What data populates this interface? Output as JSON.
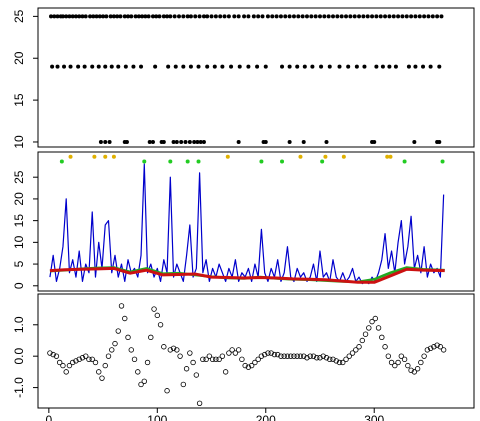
{
  "chart_data": [
    {
      "type": "scatter",
      "xlim": [
        -10,
        392
      ],
      "ylim": [
        9.4,
        26
      ],
      "yticks": [
        10,
        15,
        20,
        25
      ],
      "series": [
        {
          "color": "#000000",
          "x": [
            2,
            5,
            8,
            11,
            13,
            16,
            19,
            22,
            25,
            28,
            31,
            34,
            38,
            41,
            44,
            47,
            50,
            53,
            57,
            60,
            63,
            66,
            70,
            73,
            76,
            80,
            83,
            86,
            89,
            92,
            96,
            99,
            102,
            106,
            109,
            112,
            116,
            120,
            124,
            128,
            131,
            135,
            139,
            143,
            146,
            150,
            154,
            158,
            162,
            166,
            171,
            175,
            180,
            184,
            189,
            193,
            197,
            202,
            206,
            210,
            214,
            218,
            222,
            226,
            230,
            234,
            238,
            242,
            246,
            250,
            254,
            258,
            262,
            266,
            270,
            274,
            278,
            282,
            286,
            290,
            294,
            298,
            302,
            306,
            310,
            314,
            318,
            322,
            326,
            330,
            334,
            338,
            342,
            346,
            350,
            354,
            358,
            362
          ],
          "values": [
            25,
            25,
            25,
            25,
            25,
            25,
            25,
            25,
            25,
            25,
            25,
            25,
            25,
            25,
            25,
            25,
            25,
            25,
            25,
            25,
            25,
            25,
            25,
            25,
            25,
            25,
            25,
            25,
            25,
            25,
            25,
            25,
            25,
            25,
            25,
            25,
            25,
            25,
            25,
            25,
            25,
            25,
            25,
            25,
            25,
            25,
            25,
            25,
            25,
            25,
            25,
            25,
            25,
            25,
            25,
            25,
            25,
            25,
            25,
            25,
            25,
            25,
            25,
            25,
            25,
            25,
            25,
            25,
            25,
            25,
            25,
            25,
            25,
            25,
            25,
            25,
            25,
            25,
            25,
            25,
            25,
            25,
            25,
            25,
            25,
            25,
            25,
            25,
            25,
            25,
            25,
            25,
            25,
            25,
            25,
            25,
            25,
            25
          ]
        },
        {
          "color": "#000000",
          "x": [
            3,
            8,
            14,
            20,
            27,
            33,
            40,
            46,
            52,
            58,
            64,
            71,
            78,
            85,
            98,
            110,
            117,
            124,
            131,
            138,
            146,
            153,
            160,
            168,
            176,
            184,
            192,
            200,
            215,
            222,
            229,
            236,
            243,
            251,
            259,
            268,
            276,
            284,
            291,
            302,
            308,
            314,
            320,
            332,
            338,
            345,
            352,
            360
          ],
          "values": [
            19,
            19,
            19,
            19,
            19,
            19,
            19,
            19,
            19,
            19,
            19,
            19,
            19,
            19,
            19,
            19,
            19,
            19,
            19,
            19,
            19,
            19,
            19,
            19,
            19,
            19,
            19,
            19,
            19,
            19,
            19,
            19,
            19,
            19,
            19,
            19,
            19,
            19,
            19,
            19,
            19,
            19,
            19,
            19,
            19,
            19,
            19,
            19
          ]
        },
        {
          "color": "#000000",
          "x": [
            48,
            52,
            56,
            70,
            72,
            93,
            96,
            104,
            106,
            115,
            118,
            122,
            126,
            130,
            134,
            137,
            140,
            143,
            175,
            198,
            200,
            222,
            235,
            256,
            298,
            300,
            337,
            358,
            360
          ],
          "values": [
            10,
            10,
            10,
            10,
            10,
            10,
            10,
            10,
            10,
            10,
            10,
            10,
            10,
            10,
            10,
            10,
            10,
            10,
            10,
            10,
            10,
            10,
            10,
            10,
            10,
            10,
            10,
            10,
            10
          ]
        }
      ]
    },
    {
      "type": "line",
      "xlim": [
        -10,
        392
      ],
      "ylim": [
        -1.2,
        30.8
      ],
      "yticks": [
        0,
        5,
        10,
        15,
        20,
        25
      ],
      "series": [
        {
          "color": "#0000cc",
          "x": [
            1,
            4,
            7,
            10,
            13,
            16,
            19,
            22,
            25,
            28,
            31,
            34,
            37,
            40,
            43,
            46,
            49,
            52,
            55,
            58,
            61,
            64,
            67,
            70,
            73,
            76,
            79,
            82,
            85,
            88,
            91,
            94,
            97,
            100,
            103,
            106,
            109,
            112,
            115,
            118,
            121,
            124,
            127,
            130,
            133,
            136,
            139,
            142,
            145,
            148,
            151,
            154,
            157,
            160,
            163,
            166,
            169,
            172,
            175,
            178,
            181,
            184,
            187,
            190,
            193,
            196,
            199,
            202,
            205,
            208,
            211,
            214,
            217,
            220,
            223,
            226,
            229,
            232,
            235,
            238,
            241,
            244,
            247,
            250,
            253,
            256,
            259,
            262,
            265,
            268,
            271,
            274,
            277,
            280,
            283,
            286,
            289,
            292,
            295,
            298,
            301,
            304,
            307,
            310,
            313,
            316,
            319,
            322,
            325,
            328,
            331,
            334,
            337,
            340,
            343,
            346,
            349,
            352,
            355,
            358,
            361,
            364
          ],
          "values": [
            2,
            7,
            1,
            4,
            9,
            20,
            3,
            6,
            2,
            8,
            1,
            5,
            3,
            17,
            2,
            10,
            4,
            14,
            15,
            3,
            7,
            2,
            5,
            1,
            6,
            3,
            4,
            2,
            7,
            28,
            3,
            5,
            2,
            4,
            1,
            6,
            3,
            25,
            2,
            5,
            3,
            1,
            7,
            14,
            2,
            4,
            26,
            3,
            6,
            1,
            4,
            2,
            5,
            3,
            1,
            4,
            2,
            6,
            1,
            3,
            2,
            4,
            1,
            5,
            2,
            13,
            3,
            1,
            4,
            2,
            6,
            1,
            3,
            9,
            2,
            1,
            4,
            2,
            3,
            1,
            2,
            5,
            1,
            8,
            2,
            3,
            1,
            6,
            2,
            1,
            3,
            1,
            2,
            4,
            1,
            2,
            0.5,
            1,
            0.5,
            2,
            1,
            3,
            6,
            12,
            4,
            8,
            3,
            10,
            15,
            5,
            9,
            16,
            4,
            7,
            3,
            9,
            2,
            5,
            3,
            4,
            2,
            21
          ]
        },
        {
          "color": "#22aa22",
          "x": [
            1,
            15,
            30,
            45,
            60,
            75,
            90,
            105,
            120,
            135,
            150,
            165,
            180,
            195,
            210,
            225,
            240,
            255,
            270,
            285,
            300,
            315,
            330,
            345,
            365
          ],
          "values": [
            3.4,
            3.6,
            3.9,
            4.1,
            4.2,
            3.2,
            4.0,
            2.8,
            2.9,
            2.5,
            2.1,
            1.8,
            1.7,
            2.0,
            1.7,
            1.5,
            1.4,
            1.2,
            1.0,
            0.9,
            1.5,
            3.0,
            4.2,
            3.8,
            3.6
          ]
        },
        {
          "color": "#cc1111",
          "x": [
            1,
            15,
            30,
            45,
            60,
            75,
            90,
            105,
            120,
            135,
            150,
            165,
            180,
            195,
            210,
            225,
            240,
            255,
            270,
            285,
            300,
            315,
            330,
            345,
            365
          ],
          "values": [
            3.5,
            3.7,
            3.8,
            3.9,
            4.0,
            2.9,
            3.6,
            2.5,
            2.6,
            2.7,
            2.0,
            1.9,
            1.8,
            1.9,
            1.8,
            1.6,
            1.5,
            1.4,
            1.1,
            0.8,
            0.8,
            2.3,
            3.8,
            3.6,
            3.5
          ]
        },
        {
          "color": "#e0b000",
          "mark": "point",
          "x": [
            20,
            42,
            52,
            60,
            165,
            232,
            255,
            272,
            312,
            315
          ],
          "values": [
            29.7,
            29.7,
            29.7,
            29.7,
            29.7,
            29.7,
            29.7,
            29.7,
            29.7,
            29.7
          ]
        },
        {
          "color": "#22cc22",
          "mark": "point",
          "x": [
            12,
            88,
            112,
            128,
            138,
            196,
            215,
            252,
            328,
            363
          ],
          "values": [
            28.6,
            28.6,
            28.6,
            28.6,
            28.6,
            28.6,
            28.6,
            28.6,
            28.6,
            28.6
          ]
        }
      ]
    },
    {
      "type": "scatter",
      "marker": "open",
      "xlim": [
        -10,
        392
      ],
      "ylim": [
        -1.65,
        1.98
      ],
      "xticks": [
        0,
        100,
        200,
        300
      ],
      "yticks": [
        {
          "value": -1,
          "label": "-1.0"
        },
        {
          "value": 0,
          "label": "0.0"
        },
        {
          "value": 1,
          "label": "1.0"
        }
      ],
      "series": [
        {
          "color": "#000000",
          "x": [
            1,
            4,
            7,
            10,
            13,
            16,
            19,
            22,
            25,
            28,
            31,
            34,
            37,
            40,
            43,
            46,
            49,
            52,
            55,
            58,
            61,
            64,
            67,
            70,
            73,
            76,
            79,
            82,
            85,
            88,
            91,
            94,
            97,
            100,
            103,
            106,
            109,
            112,
            115,
            118,
            121,
            124,
            127,
            130,
            133,
            136,
            139,
            142,
            145,
            148,
            151,
            154,
            157,
            160,
            163,
            166,
            169,
            172,
            175,
            178,
            181,
            184,
            187,
            190,
            193,
            196,
            199,
            202,
            205,
            208,
            211,
            214,
            217,
            220,
            223,
            226,
            229,
            232,
            235,
            238,
            241,
            244,
            247,
            250,
            253,
            256,
            259,
            262,
            265,
            268,
            271,
            274,
            277,
            280,
            283,
            286,
            289,
            292,
            295,
            298,
            301,
            304,
            307,
            310,
            313,
            316,
            319,
            322,
            325,
            328,
            331,
            334,
            337,
            340,
            343,
            346,
            349,
            352,
            355,
            358,
            361,
            364
          ],
          "values": [
            0.1,
            0.05,
            0.0,
            -0.2,
            -0.3,
            -0.5,
            -0.3,
            -0.2,
            -0.15,
            -0.1,
            -0.05,
            0.0,
            -0.1,
            -0.1,
            -0.2,
            -0.5,
            -0.7,
            -0.3,
            0.0,
            0.2,
            0.4,
            0.8,
            1.6,
            1.2,
            0.6,
            0.2,
            -0.1,
            -0.5,
            -0.9,
            -0.8,
            -0.2,
            0.6,
            1.5,
            1.3,
            1.0,
            0.3,
            -1.1,
            0.2,
            0.25,
            0.2,
            0.0,
            -0.9,
            -0.4,
            0.1,
            -0.2,
            -0.6,
            -1.5,
            -0.1,
            -0.1,
            0.0,
            -0.1,
            -0.1,
            -0.1,
            0.0,
            -0.5,
            0.1,
            0.2,
            0.1,
            0.2,
            -0.1,
            -0.3,
            -0.35,
            -0.3,
            -0.2,
            -0.1,
            0.0,
            0.05,
            0.1,
            0.1,
            0.05,
            0.05,
            0.0,
            0.0,
            0.0,
            0.0,
            0.0,
            0.0,
            0.0,
            0.0,
            -0.05,
            0.0,
            0.0,
            -0.05,
            -0.05,
            0.0,
            -0.05,
            -0.1,
            -0.1,
            -0.15,
            -0.2,
            -0.2,
            -0.1,
            0.0,
            0.1,
            0.2,
            0.3,
            0.5,
            0.7,
            0.9,
            1.1,
            1.2,
            0.9,
            0.6,
            0.3,
            0.0,
            -0.2,
            -0.3,
            -0.2,
            0.0,
            -0.1,
            -0.3,
            -0.45,
            -0.5,
            -0.4,
            -0.2,
            0.0,
            0.2,
            0.25,
            0.3,
            0.35,
            0.3,
            0.2
          ]
        }
      ]
    }
  ]
}
